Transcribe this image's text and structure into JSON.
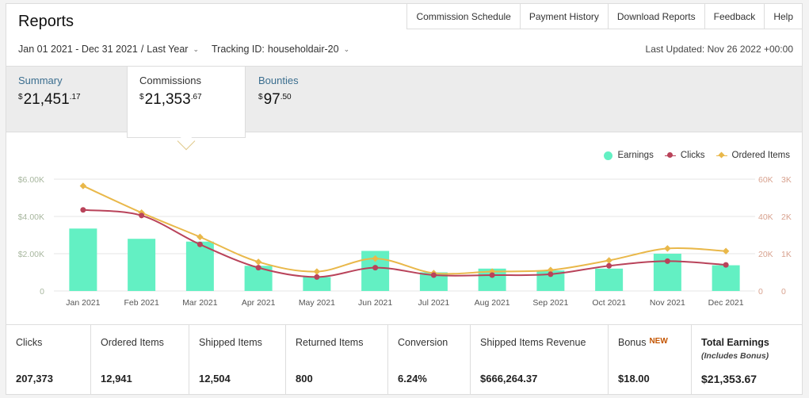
{
  "header": {
    "title": "Reports",
    "nav": [
      "Commission Schedule",
      "Payment History",
      "Download Reports",
      "Feedback",
      "Help"
    ]
  },
  "filters": {
    "date_range": "Jan 01 2021 - Dec 31 2021",
    "date_sep": "/",
    "date_preset": "Last Year",
    "tracking_id_label": "Tracking ID:",
    "tracking_id": "householdair-20",
    "last_updated": "Last Updated: Nov 26 2022 +00:00"
  },
  "tabs": [
    {
      "label": "Summary",
      "currency": "$",
      "whole": "21,451",
      "cents": ".17"
    },
    {
      "label": "Commissions",
      "currency": "$",
      "whole": "21,353",
      "cents": ".67",
      "active": true
    },
    {
      "label": "Bounties",
      "currency": "$",
      "whole": "97",
      "cents": ".50"
    }
  ],
  "legend": [
    "Earnings",
    "Clicks",
    "Ordered Items"
  ],
  "colors": {
    "earnings": "#63f0c3",
    "clicks": "#b9435a",
    "ordered": "#e9b84a",
    "axis_earnings": "#a8b79f",
    "axis_right": "#d8a28f",
    "link": "#3b6e8f",
    "new_badge": "#c45500"
  },
  "chart_data": {
    "type": "bar",
    "categories": [
      "Jan 2021",
      "Feb 2021",
      "Mar 2021",
      "Apr 2021",
      "May 2021",
      "Jun 2021",
      "Jul 2021",
      "Aug 2021",
      "Sep 2021",
      "Oct 2021",
      "Nov 2021",
      "Dec 2021"
    ],
    "series": [
      {
        "name": "Earnings",
        "type": "bar",
        "axis": "left",
        "values": [
          3350,
          2800,
          2650,
          1350,
          750,
          2150,
          1000,
          1200,
          1100,
          1200,
          2000,
          1380
        ]
      },
      {
        "name": "Clicks",
        "type": "line",
        "axis": "right1",
        "values": [
          43500,
          40500,
          25000,
          12500,
          7500,
          12500,
          8500,
          8500,
          9000,
          13500,
          16000,
          14000
        ]
      },
      {
        "name": "Ordered Items",
        "type": "line",
        "axis": "right2",
        "values": [
          2820,
          2100,
          1450,
          780,
          520,
          870,
          480,
          520,
          560,
          820,
          1140,
          1070
        ]
      }
    ],
    "axes": {
      "left": {
        "ticks": [
          "0",
          "$2.00K",
          "$4.00K",
          "$6.00K"
        ],
        "max": 6000
      },
      "right1": {
        "ticks": [
          "0",
          "20K",
          "40K",
          "60K"
        ],
        "max": 60000
      },
      "right2": {
        "ticks": [
          "0",
          "1K",
          "2K",
          "3K"
        ],
        "max": 3000
      }
    }
  },
  "stats": [
    {
      "label": "Clicks",
      "value": "207,373"
    },
    {
      "label": "Ordered Items",
      "value": "12,941"
    },
    {
      "label": "Shipped Items",
      "value": "12,504"
    },
    {
      "label": "Returned Items",
      "value": "800"
    },
    {
      "label": "Conversion",
      "value": "6.24%"
    },
    {
      "label": "Shipped Items Revenue",
      "value": "$666,264.37"
    },
    {
      "label": "Bonus",
      "badge": "NEW",
      "value": "$18.00"
    },
    {
      "label": "Total Earnings",
      "sub": "(Includes Bonus)",
      "value": "$21,353.67"
    }
  ]
}
